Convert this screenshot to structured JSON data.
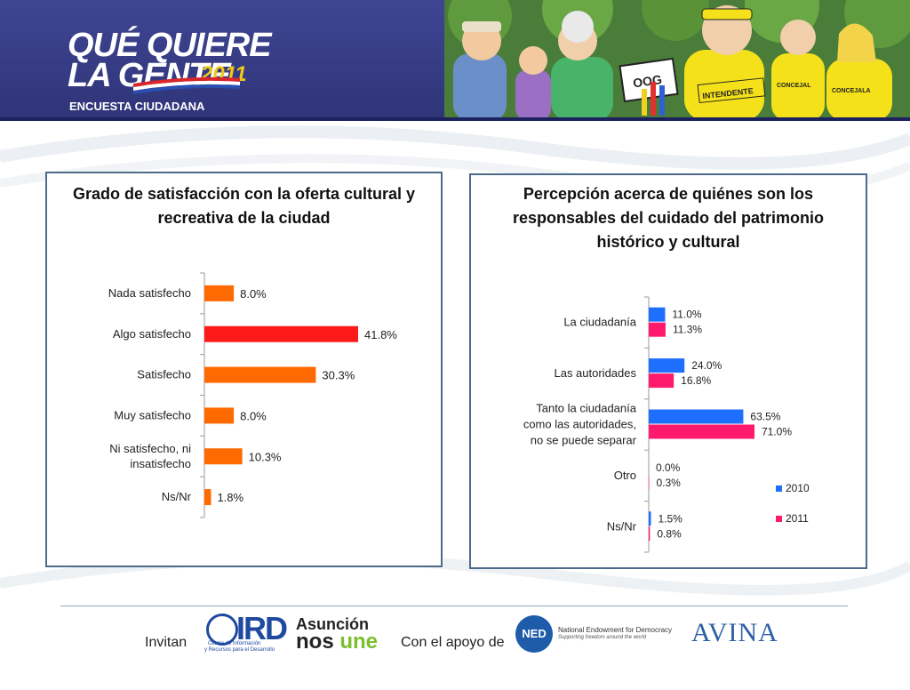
{
  "header": {
    "logo_line1": "QUÉ QUIERE",
    "logo_line2": "LA GENTE",
    "logo_year": "2011",
    "logo_sub": "ENCUESTA CIUDADANA",
    "cartoon_signs": [
      "OOG",
      "INTENDENTE",
      "CONCEJALA",
      "CONCEJAL"
    ]
  },
  "colors": {
    "header_bg": "#3a3f8a",
    "bar_orange": "#ff6a00",
    "bar_red": "#ff1a1a",
    "series_2010": "#1f6fff",
    "series_2011": "#ff1a6e",
    "panel_border": "#4c6a8a"
  },
  "chart_data": [
    {
      "type": "bar",
      "orientation": "horizontal",
      "title": "Grado de satisfacción con la oferta cultural y recreativa de la ciudad",
      "categories": [
        "Nada satisfecho",
        "Algo satisfecho",
        "Satisfecho",
        "Muy satisfecho",
        "Ni satisfecho, ni insatisfecho",
        "Ns/Nr"
      ],
      "values": [
        8.0,
        41.8,
        30.3,
        8.0,
        10.3,
        1.8
      ],
      "labels": [
        "8.0%",
        "41.8%",
        "30.3%",
        "8.0%",
        "10.3%",
        "1.8%"
      ],
      "xlim": [
        0,
        50
      ],
      "highlight_index": 1
    },
    {
      "type": "bar",
      "orientation": "horizontal",
      "title": "Percepción acerca de quiénes son los responsables del cuidado del patrimonio histórico y cultural",
      "categories": [
        "La ciudadanía",
        "Las autoridades",
        "Tanto la ciudadanía como las autoridades, no se puede separar",
        "Otro",
        "Ns/Nr"
      ],
      "series": [
        {
          "name": "2010",
          "values": [
            11.0,
            24.0,
            63.5,
            0.0,
            1.5
          ],
          "labels": [
            "11.0%",
            "24.0%",
            "63.5%",
            "0.0%",
            "1.5%"
          ]
        },
        {
          "name": "2011",
          "values": [
            11.3,
            16.8,
            71.0,
            0.3,
            0.8
          ],
          "labels": [
            "11.3%",
            "16.8%",
            "71.0%",
            "0.3%",
            "0.8%"
          ]
        }
      ],
      "xlim": [
        0,
        100
      ],
      "legend": "right"
    }
  ],
  "footer": {
    "invitan": "Invitan",
    "ird_name": "IRD",
    "ird_sub1": "Centro de Información",
    "ird_sub2": "y Recursos para el Desarrollo",
    "asuncion_1": "Asunción",
    "asuncion_2a": "nos ",
    "asuncion_2b": "une",
    "apoyo": "Con el apoyo de",
    "ned_abbr": "NED",
    "ned_name": "National Endowment for Democracy",
    "ned_tag": "Supporting freedom around the world",
    "avina": "AVINA"
  }
}
